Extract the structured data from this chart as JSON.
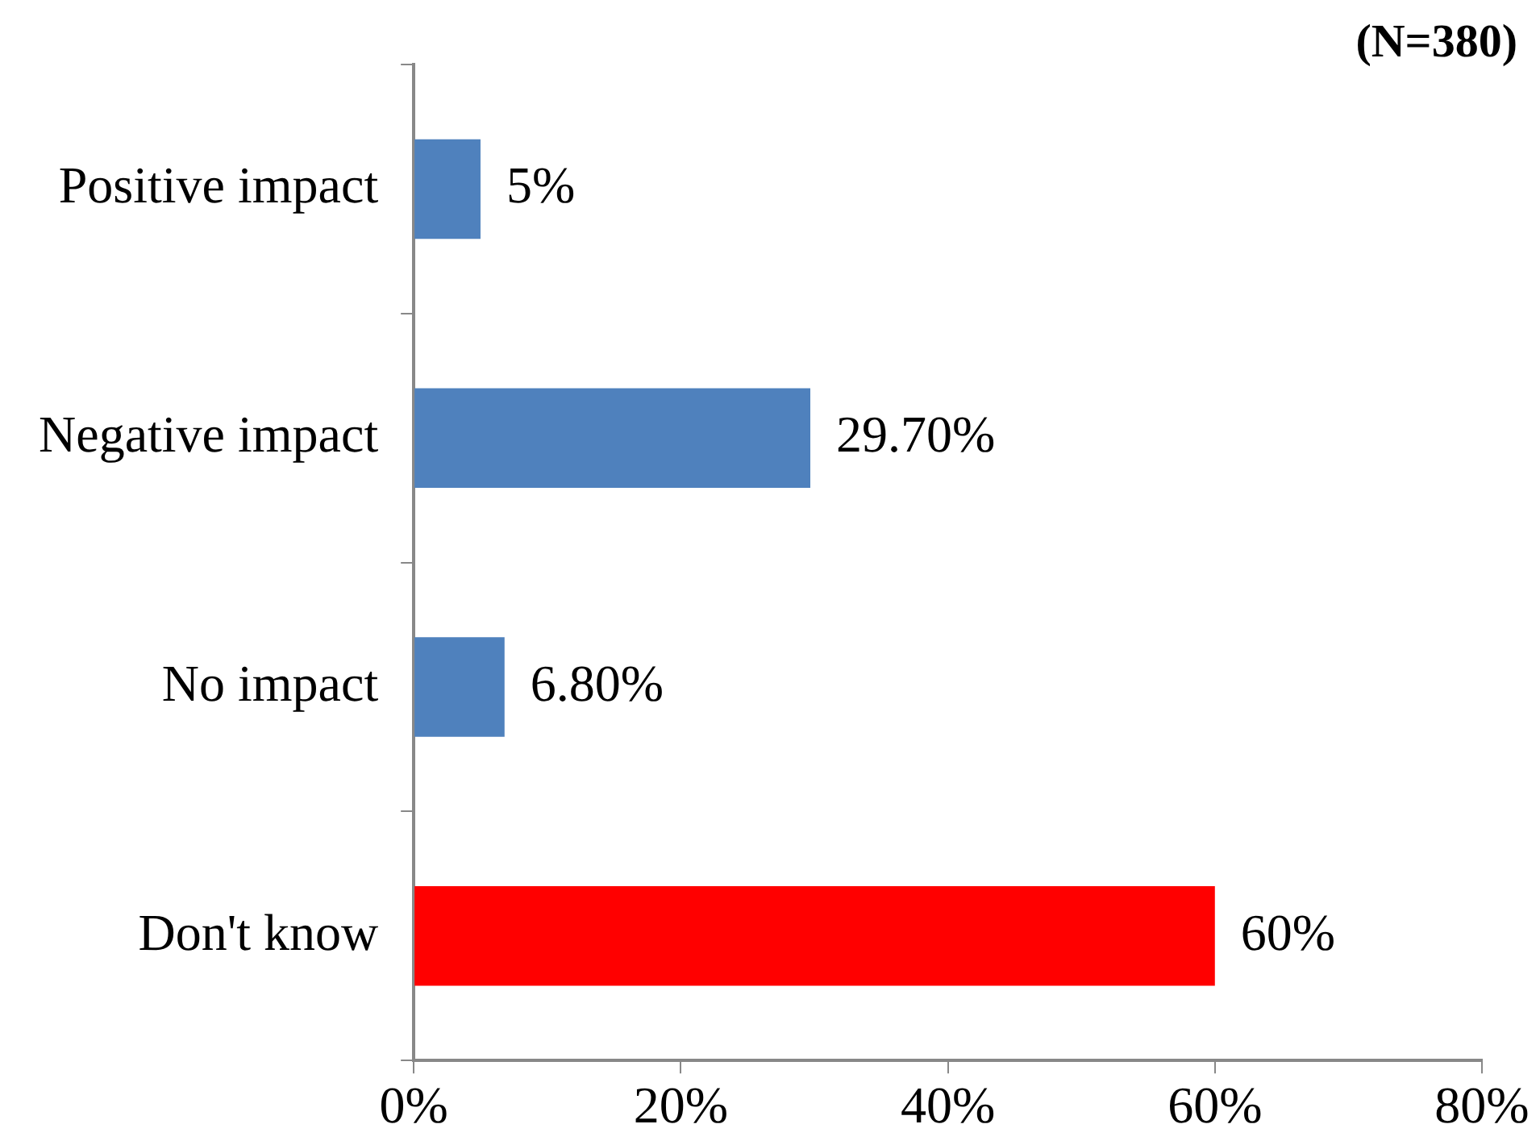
{
  "chart_data": {
    "type": "bar",
    "orientation": "horizontal",
    "categories": [
      "Positive impact",
      "Negative impact",
      "No impact",
      "Don't know"
    ],
    "values": [
      5,
      29.7,
      6.8,
      60
    ],
    "colors": [
      "#4f81bd",
      "#4f81bd",
      "#4f81bd",
      "#ff0000"
    ],
    "value_labels": [
      "5%",
      "29.70%",
      "6.80%",
      "60%"
    ],
    "xlim": [
      0,
      80
    ],
    "xticks": [
      {
        "value": 0,
        "label": "0%"
      },
      {
        "value": 20,
        "label": "20%"
      },
      {
        "value": 40,
        "label": "40%"
      },
      {
        "value": 60,
        "label": "60%"
      },
      {
        "value": 80,
        "label": "80%"
      }
    ],
    "grid": false,
    "legend": false,
    "annotations": [
      "(N=380)"
    ]
  }
}
